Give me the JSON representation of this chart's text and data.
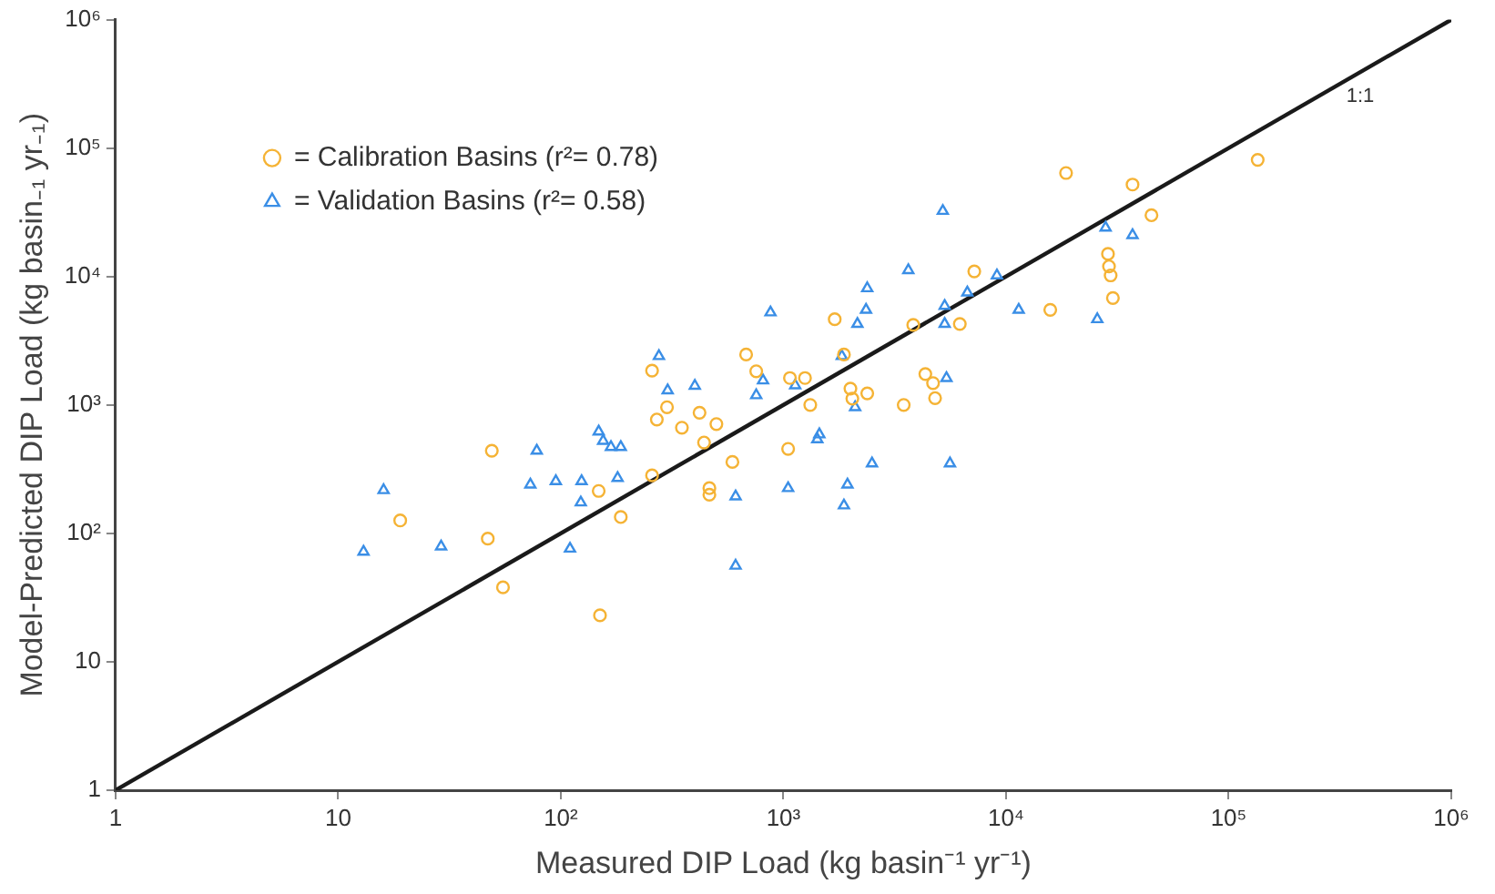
{
  "chart_data": {
    "type": "scatter",
    "xlabel": "Measured DIP Load (kg basin⁻¹ yr⁻¹)",
    "ylabel": "Model-Predicted DIP Load (kg basin₋₁ yr₋₁)",
    "log": "xy",
    "grid": false,
    "legend": "top left",
    "xlim": [
      1,
      1000000
    ],
    "ylim": [
      1,
      1000000
    ],
    "xticks": [
      1,
      10,
      {
        "value": 100,
        "label": "10²"
      },
      {
        "value": 1000,
        "label": "10³"
      },
      {
        "value": 10000,
        "label": "10⁴"
      },
      {
        "value": 100000,
        "label": "10⁵"
      },
      {
        "value": 1000000,
        "label": "10⁶"
      }
    ],
    "yticks": [
      1,
      10,
      {
        "value": 100,
        "label": "10²"
      },
      {
        "value": 1000,
        "label": "10³"
      },
      {
        "value": 10000,
        "label": "10⁴"
      },
      {
        "value": 100000,
        "label": "10⁵"
      },
      {
        "value": 1000000,
        "label": "10⁶"
      }
    ],
    "series": [
      {
        "name": "= Calibration Basins (r²= 0.78)",
        "color": "#f5b335",
        "marker": "circle",
        "x": [
          49,
          19,
          47,
          55,
          150,
          148,
          186,
          257,
          257,
          270,
          300,
          350,
          420,
          440,
          500,
          465,
          465,
          590,
          680,
          755,
          1070,
          1250,
          1320,
          1050,
          1700,
          1870,
          2000,
          2040,
          2380,
          3470,
          3830,
          4340,
          4700,
          4800,
          6200,
          7200,
          15800,
          18600,
          28700,
          29000,
          29500,
          30200,
          37000,
          45000,
          135000
        ],
        "values": [
          440,
          126,
          91,
          38,
          23,
          214,
          134,
          1850,
          283,
          770,
          960,
          665,
          870,
          510,
          710,
          225,
          200,
          360,
          2470,
          1830,
          1620,
          1620,
          1000,
          455,
          4650,
          2470,
          1340,
          1120,
          1230,
          1000,
          4200,
          1740,
          1480,
          1130,
          4270,
          10960,
          5500,
          64000,
          15000,
          12000,
          10200,
          6800,
          52000,
          30000,
          81000
        ]
      },
      {
        "name": "= Validation Basins (r²= 0.58)",
        "color": "#3a8ee6",
        "marker": "triangle",
        "x": [
          13,
          16,
          29,
          78,
          73,
          95,
          110,
          124,
          123,
          148,
          155,
          168,
          186,
          180,
          276,
          302,
          400,
          610,
          610,
          755,
          810,
          875,
          1050,
          1130,
          1420,
          1450,
          1830,
          1870,
          1940,
          2100,
          2150,
          2350,
          2380,
          2500,
          3640,
          5200,
          5300,
          5300,
          5400,
          5600,
          6700,
          9100,
          11400,
          25700,
          28000,
          37000
        ],
        "values": [
          72,
          217,
          79,
          440,
          240,
          255,
          76,
          255,
          174,
          620,
          525,
          470,
          470,
          270,
          2400,
          1300,
          1410,
          194,
          56,
          1190,
          1550,
          5250,
          225,
          1420,
          540,
          590,
          2400,
          165,
          240,
          960,
          4270,
          5500,
          8100,
          350,
          11200,
          32400,
          5900,
          4270,
          1620,
          350,
          7500,
          10200,
          5500,
          4650,
          24000,
          21000
        ]
      },
      {
        "name": "1:1",
        "type": "line",
        "color": "#1a1a1a",
        "marker": "none",
        "line_style": "solid",
        "x": [
          1,
          1000000
        ],
        "values": [
          1,
          1000000
        ]
      }
    ]
  }
}
